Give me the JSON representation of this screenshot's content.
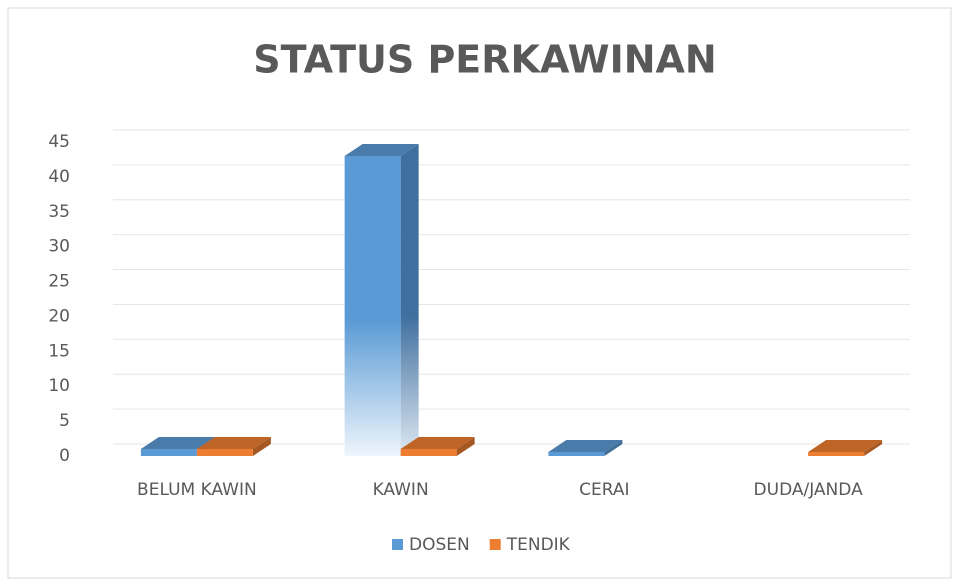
{
  "chart_data": {
    "type": "bar3d",
    "title": "STATUS PERKAWINAN",
    "categories": [
      "BELUM KAWIN",
      "KAWIN",
      "CERAI",
      "DUDA/JANDA"
    ],
    "series": [
      {
        "name": "DOSEN",
        "color": "#5b9bd5",
        "values": [
          1,
          43,
          0,
          null
        ]
      },
      {
        "name": "TENDIK",
        "color": "#ed7d31",
        "values": [
          1,
          1,
          null,
          0
        ]
      }
    ],
    "ylim": [
      0,
      45
    ],
    "yticks": [
      0,
      5,
      10,
      15,
      20,
      25,
      30,
      35,
      40,
      45
    ],
    "grid": true,
    "legend": "bottom"
  }
}
